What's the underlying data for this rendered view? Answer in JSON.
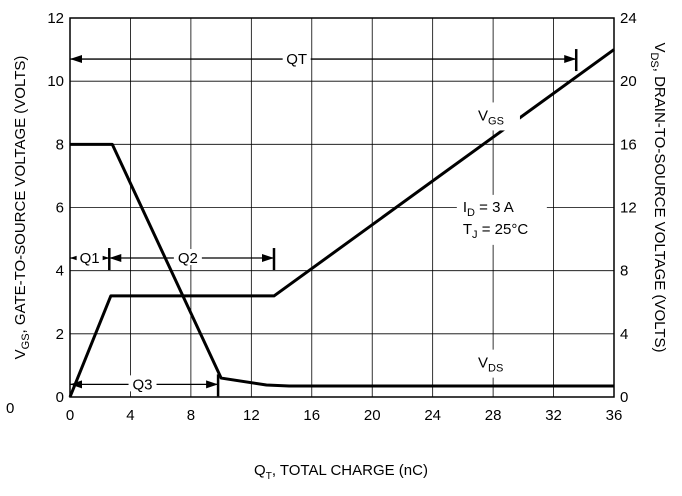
{
  "chart_data": {
    "type": "line",
    "title": "",
    "xlabel": {
      "main": "Q",
      "sub": "T",
      "rest": ", TOTAL CHARGE (nC)"
    },
    "ylabel_left": {
      "main": "V",
      "sub": "GS",
      "rest": ", GATE-TO-SOURCE VOLTAGE (VOLTS)"
    },
    "ylabel_right": {
      "main": "V",
      "sub": "DS",
      "rest": ", DRAIN-TO-SOURCE VOLTAGE (VOLTS)"
    },
    "xlim": [
      0,
      36
    ],
    "ylim_left": [
      0,
      12
    ],
    "ylim_right": [
      0,
      24
    ],
    "x_ticks": [
      0,
      4,
      8,
      12,
      16,
      20,
      24,
      28,
      32,
      36
    ],
    "y_left_ticks": [
      0,
      2,
      4,
      6,
      8,
      10,
      12
    ],
    "y_right_ticks": [
      0,
      4,
      8,
      12,
      16,
      20,
      24
    ],
    "origin_label": "0",
    "grid": true,
    "series": [
      {
        "name": {
          "main": "V",
          "sub": "GS"
        },
        "axis": "left",
        "x": [
          0,
          2.7,
          13.5,
          36
        ],
        "y": [
          0,
          3.2,
          3.2,
          11
        ]
      },
      {
        "name": {
          "main": "V",
          "sub": "DS"
        },
        "axis": "left",
        "x": [
          0,
          2.8,
          10,
          13,
          14.5,
          36
        ],
        "y": [
          8,
          8,
          0.6,
          0.38,
          0.35,
          0.35
        ]
      }
    ],
    "conditions": [
      {
        "main": "I",
        "sub": "D",
        "rest": " = 3 A"
      },
      {
        "main": "T",
        "sub": "J",
        "rest": " = 25°C"
      }
    ],
    "annotations": [
      {
        "label": "QT",
        "x_start": 0,
        "x_end": 33.5,
        "y": 10.7,
        "marker_x": 33.5
      },
      {
        "label": "Q1",
        "x_start": 0,
        "x_end": 2.6,
        "y": 4.4,
        "marker_x": 2.6
      },
      {
        "label": "Q2",
        "x_start": 2.6,
        "x_end": 13.5,
        "y": 4.4,
        "marker_x": 13.5
      },
      {
        "label": "Q3",
        "x_start": 0,
        "x_end": 9.8,
        "y": 0.4,
        "marker_x": 9.8
      }
    ]
  }
}
